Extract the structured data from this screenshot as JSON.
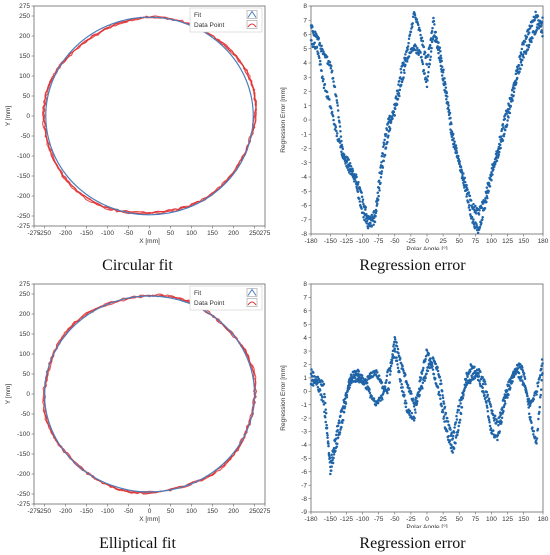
{
  "captions": [
    "Circular fit",
    "Regression error",
    "Elliptical fit",
    "Regression error"
  ],
  "colors": {
    "fit": "#4a7ebb",
    "data": "#e03030",
    "error": "#1f64a8",
    "axis": "#666666"
  },
  "chart_data": [
    {
      "type": "scatter",
      "caption": "Circular fit",
      "xlabel": "X [mm]",
      "ylabel": "Y [mm]",
      "xlim": [
        -275,
        275
      ],
      "ylim": [
        -275,
        275
      ],
      "xticks": [
        -275,
        -250,
        -200,
        -150,
        -100,
        -50,
        0,
        50,
        100,
        150,
        200,
        250,
        275
      ],
      "yticks": [
        -275,
        -250,
        -200,
        -150,
        -100,
        -50,
        0,
        50,
        100,
        150,
        200,
        250,
        275
      ],
      "legend": {
        "position": "top-right",
        "entries": [
          "Fit",
          "Data Point"
        ]
      },
      "series": [
        {
          "name": "Fit",
          "shape": "circle",
          "center": [
            0,
            0
          ],
          "radius": 247
        },
        {
          "name": "Data Point",
          "shape": "measured",
          "center": [
            0,
            0
          ],
          "radius": 247,
          "deviation": "circular-fit residuals"
        }
      ]
    },
    {
      "type": "scatter",
      "caption": "Regression error",
      "xlabel": "Polar Angle [°]",
      "ylabel": "Regression Error [mm]",
      "xlim": [
        -180,
        180
      ],
      "ylim": [
        -8,
        8
      ],
      "xticks": [
        -180,
        -150,
        -125,
        -100,
        -75,
        -50,
        -25,
        0,
        25,
        50,
        75,
        100,
        125,
        150,
        180
      ],
      "yticks": [
        -8,
        -7,
        -6,
        -5,
        -4,
        -3,
        -2,
        -1,
        0,
        1,
        2,
        3,
        4,
        5,
        6,
        7,
        8
      ],
      "series": [
        {
          "x": [
            -180,
            -170,
            -160,
            -150,
            -140,
            -130,
            -120,
            -110,
            -100,
            -90,
            -80,
            -70,
            -60,
            -50,
            -40,
            -30,
            -20,
            -10,
            0,
            10,
            20,
            30,
            40,
            50,
            60,
            70,
            80,
            90,
            100,
            110,
            120,
            130,
            140,
            150,
            160,
            170,
            180
          ],
          "y": [
            6.5,
            5.8,
            4.5,
            4.0,
            1.5,
            -2.5,
            -3.5,
            -4.0,
            -5.5,
            -7.0,
            -6.5,
            -2.5,
            0.0,
            0.5,
            2.5,
            4.5,
            5.2,
            4.5,
            2.5,
            6.0,
            5.0,
            2.0,
            -1.0,
            -3.0,
            -4.5,
            -6.0,
            -6.5,
            -5.5,
            -3.5,
            -2.5,
            -1.0,
            1.0,
            3.0,
            4.5,
            5.5,
            6.5,
            7.0
          ]
        },
        {
          "x": [
            -180,
            -170,
            -160,
            -150,
            -140,
            -130,
            -120,
            -110,
            -100,
            -90,
            -80,
            -70,
            -60,
            -50,
            -40,
            -30,
            -20,
            -10,
            0,
            10,
            20,
            30,
            40,
            50,
            60,
            70,
            80,
            90,
            100,
            110,
            120,
            130,
            140,
            150,
            160,
            170,
            180
          ],
          "y": [
            5.5,
            5.0,
            2.5,
            1.0,
            -1.0,
            -2.5,
            -3.0,
            -4.5,
            -6.5,
            -7.5,
            -7.0,
            -3.5,
            -1.0,
            1.0,
            3.5,
            5.0,
            7.5,
            6.0,
            4.0,
            7.0,
            4.0,
            1.5,
            -1.5,
            -3.0,
            -5.0,
            -7.0,
            -7.8,
            -6.0,
            -4.0,
            -2.0,
            0.0,
            1.5,
            3.5,
            5.5,
            6.5,
            7.5,
            6.0
          ]
        }
      ]
    },
    {
      "type": "scatter",
      "caption": "Elliptical fit",
      "xlabel": "X [mm]",
      "ylabel": "Y [mm]",
      "xlim": [
        -275,
        275
      ],
      "ylim": [
        -275,
        275
      ],
      "xticks": [
        -275,
        -250,
        -200,
        -150,
        -100,
        -50,
        0,
        50,
        100,
        150,
        200,
        250,
        275
      ],
      "yticks": [
        -275,
        -250,
        -200,
        -150,
        -100,
        -50,
        0,
        50,
        100,
        150,
        200,
        250,
        275
      ],
      "legend": {
        "position": "top-right",
        "entries": [
          "Fit",
          "Data Point"
        ]
      },
      "series": [
        {
          "name": "Fit",
          "shape": "ellipse",
          "center": [
            0,
            0
          ],
          "rx": 250,
          "ry": 245
        },
        {
          "name": "Data Point",
          "shape": "measured",
          "center": [
            0,
            0
          ],
          "rx": 250,
          "ry": 245,
          "deviation": "elliptical-fit residuals"
        }
      ]
    },
    {
      "type": "scatter",
      "caption": "Regression error",
      "xlabel": "Polar Angle [°]",
      "ylabel": "Regression Error [mm]",
      "xlim": [
        -180,
        180
      ],
      "ylim": [
        -9,
        8
      ],
      "xticks": [
        -180,
        -150,
        -125,
        -100,
        -75,
        -50,
        -25,
        0,
        25,
        50,
        75,
        100,
        125,
        150,
        180
      ],
      "yticks": [
        -9,
        -8,
        -7,
        -6,
        -5,
        -4,
        -3,
        -2,
        -1,
        0,
        1,
        2,
        3,
        4,
        5,
        6,
        7,
        8
      ],
      "series": [
        {
          "x": [
            -180,
            -170,
            -160,
            -150,
            -140,
            -130,
            -120,
            -110,
            -100,
            -90,
            -80,
            -70,
            -60,
            -50,
            -40,
            -30,
            -20,
            -10,
            0,
            10,
            20,
            30,
            40,
            50,
            60,
            70,
            80,
            90,
            100,
            110,
            120,
            130,
            140,
            150,
            160,
            170,
            180
          ],
          "y": [
            1.5,
            0.5,
            -1.0,
            -5.5,
            -3.0,
            -1.0,
            0.5,
            1.0,
            0.5,
            1.0,
            1.5,
            0.5,
            0.0,
            4.0,
            2.0,
            0.5,
            -1.0,
            0.0,
            1.5,
            2.5,
            1.0,
            -2.0,
            -3.5,
            -1.0,
            0.5,
            1.0,
            1.5,
            0.5,
            -1.5,
            -2.5,
            -0.5,
            1.0,
            1.5,
            0.5,
            -1.0,
            0.0,
            2.5
          ]
        },
        {
          "x": [
            -180,
            -170,
            -160,
            -150,
            -140,
            -130,
            -120,
            -110,
            -100,
            -90,
            -80,
            -70,
            -60,
            -50,
            -40,
            -30,
            -20,
            -10,
            0,
            10,
            20,
            30,
            40,
            50,
            60,
            70,
            80,
            90,
            100,
            110,
            120,
            130,
            140,
            150,
            160,
            170,
            180
          ],
          "y": [
            0.5,
            1.0,
            0.5,
            -6.0,
            -4.0,
            -2.0,
            1.0,
            1.5,
            1.0,
            0.0,
            -1.0,
            -0.5,
            1.5,
            3.0,
            0.5,
            -1.5,
            -2.0,
            1.0,
            3.0,
            1.5,
            -0.5,
            -3.0,
            -4.5,
            -2.5,
            1.0,
            2.0,
            1.0,
            -0.5,
            -3.0,
            -3.5,
            -1.0,
            0.5,
            2.0,
            1.5,
            -2.0,
            -4.0,
            2.0
          ]
        }
      ]
    }
  ]
}
